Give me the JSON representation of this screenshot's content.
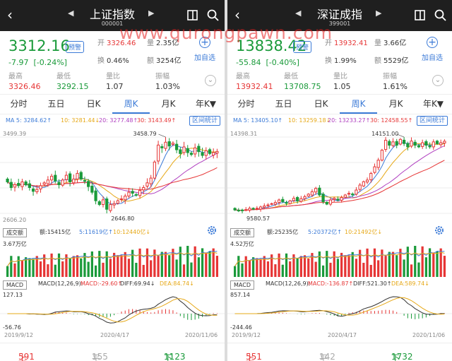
{
  "watermark": "www.qurongpawn.com",
  "colors": {
    "up": "#e63535",
    "down": "#1a9a3a",
    "accent": "#3b7ad7",
    "ma5": "#3b7ad7",
    "ma10": "#e6a817",
    "ma20": "#b040c0",
    "ma30": "#e63535"
  },
  "panels": [
    {
      "title": "上证指数",
      "code": "000001",
      "price": "3312.16",
      "tag": "预警",
      "change": "-7.97",
      "pct": "[-0.24%]",
      "open_label": "开",
      "open": "3326.46",
      "vol_label": "量",
      "vol": "2.35亿",
      "turn_label": "换",
      "turn": "0.46%",
      "amt_label": "额",
      "amt": "3254亿",
      "add_label": "加自选",
      "high_label": "最高",
      "high": "3326.46",
      "low_label": "最低",
      "low": "3292.15",
      "ratio_label": "量比",
      "ratio": "1.07",
      "amp_label": "振幅",
      "amp": "1.03%",
      "tabs": [
        "分时",
        "五日",
        "日K",
        "周K",
        "月K",
        "年K▼"
      ],
      "ma": [
        "MA 5: 3284.62↑",
        "10: 3281.44↓",
        "20: 3277.48↑",
        "30: 3143.49↑"
      ],
      "stat_btn": "区间统计",
      "y_top": "3499.39",
      "y_bottom": "2606.20",
      "peak": "3458.79",
      "trough": "2646.80",
      "vol_sel": "成交额",
      "vol_items": [
        "额:15415亿",
        "5:11619亿↑",
        "10:12440亿↓"
      ],
      "vol_axis": "3.67万亿",
      "macd_sel": "MACD",
      "macd_items": [
        "MACD(12,26,9):",
        "MACD:-29.60↑",
        "DIFF:69.94↓",
        "DEA:84.74↓"
      ],
      "macd_top": "127.13",
      "macd_bottom": "-56.76",
      "dates": [
        "2019/9/12",
        "2020/4/17",
        "2020/11/06"
      ],
      "up_label": "上涨",
      "up": "591家",
      "flat_label": "平盘",
      "flat": "155家",
      "down_label": "下跌",
      "down": "1123家"
    },
    {
      "title": "深证成指",
      "code": "399001",
      "price": "13838.42",
      "tag": "预警",
      "change": "-55.84",
      "pct": "[-0.40%]",
      "open_label": "开",
      "open": "13932.41",
      "vol_label": "量",
      "vol": "3.66亿",
      "turn_label": "换",
      "turn": "1.99%",
      "amt_label": "额",
      "amt": "5529亿",
      "add_label": "加自选",
      "high_label": "最高",
      "high": "13932.41",
      "low_label": "最低",
      "low": "13708.75",
      "ratio_label": "量比",
      "ratio": "1.05",
      "amp_label": "振幅",
      "amp": "1.61%",
      "tabs": [
        "分时",
        "五日",
        "日K",
        "周K",
        "月K",
        "年K▼"
      ],
      "ma": [
        "MA 5: 13405.10↑",
        "10: 13259.18↓",
        "20: 13233.27↑",
        "30: 12458.55↑"
      ],
      "stat_btn": "区间统计",
      "y_top": "14398.31",
      "y_bottom": "",
      "peak": "14151.00",
      "trough": "9580.57",
      "vol_sel": "成交额",
      "vol_items": [
        "额:25235亿",
        "5:20372亿↑",
        "10:21492亿↓"
      ],
      "vol_axis": "4.52万亿",
      "macd_sel": "MACD",
      "macd_items": [
        "MACD(12,26,9):",
        "MACD:-136.87↑",
        "DIFF:521.30↑",
        "DEA:589.74↓"
      ],
      "macd_top": "857.14",
      "macd_bottom": "-244.46",
      "dates": [
        "2019/9/12",
        "2020/4/17",
        "2020/11/06"
      ],
      "up_label": "上涨",
      "up": "551家",
      "flat_label": "平盘",
      "flat": "142家",
      "down_label": "下跌",
      "down": "1732家"
    }
  ],
  "chart_data": [
    {
      "type": "candlestick",
      "series": [
        {
          "name": "weekly_close",
          "values": [
            2990,
            2930,
            2960,
            2950,
            2990,
            2960,
            2930,
            2890,
            2910,
            2950,
            2980,
            3010,
            3050,
            3000,
            2960,
            3010,
            3060,
            2990,
            3020,
            3080,
            3020,
            3000,
            2940,
            2880,
            2790,
            2750,
            2800,
            2700,
            2750,
            2760,
            2790,
            2810,
            2840,
            2880,
            2870,
            2850,
            2900,
            2930,
            2980,
            3030,
            3200,
            3380,
            3350,
            3410,
            3370,
            3400,
            3330,
            3290,
            3360,
            3300,
            3280,
            3350,
            3310,
            3270,
            3320,
            3290,
            3300,
            3312
          ]
        }
      ]
    },
    {
      "type": "candlestick",
      "series": [
        {
          "name": "weekly_close",
          "values": [
            9700,
            9680,
            9650,
            9720,
            9800,
            9750,
            9800,
            9880,
            9940,
            10000,
            10080,
            10150,
            10300,
            10200,
            10100,
            10250,
            10400,
            10250,
            10380,
            10500,
            10650,
            10800,
            11000,
            10600,
            10200,
            10050,
            10300,
            10400,
            10300,
            10450,
            10600,
            10700,
            10650,
            10900,
            11200,
            11400,
            11500,
            11900,
            12300,
            12700,
            13300,
            13900,
            13600,
            13800,
            13600,
            13950,
            13700,
            13500,
            13850,
            13600,
            13500,
            13750,
            13600,
            13500,
            13800,
            13700,
            13750,
            13838
          ]
        }
      ]
    }
  ]
}
